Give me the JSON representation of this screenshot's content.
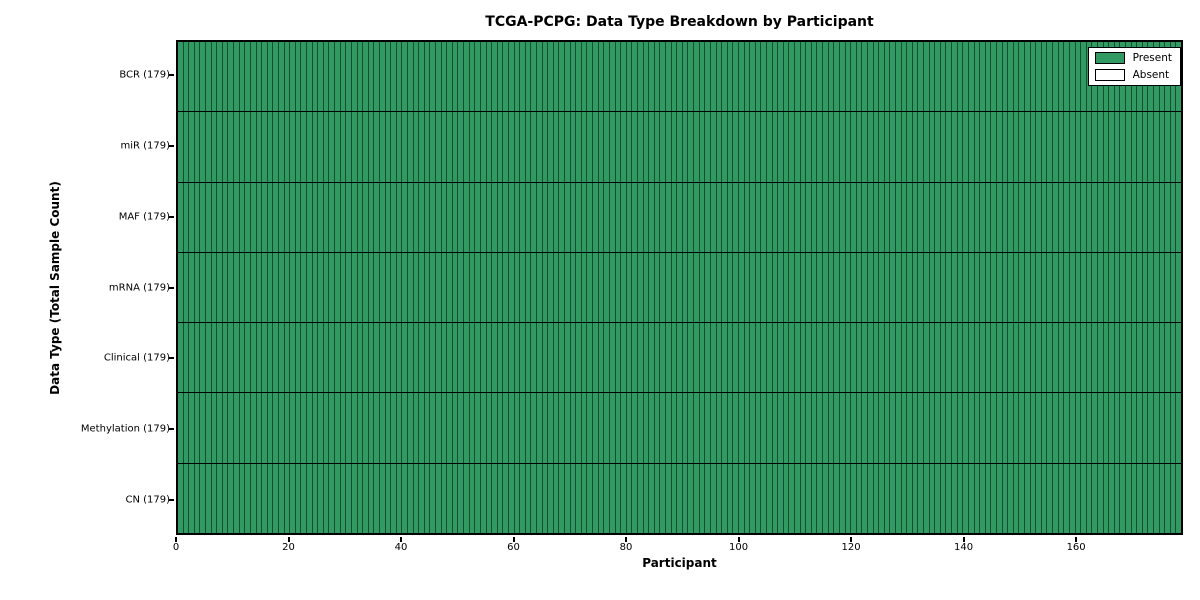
{
  "chart_data": {
    "type": "heatmap",
    "title": "TCGA-PCPG: Data Type Breakdown by Participant",
    "xlabel": "Participant",
    "ylabel": "Data Type (Total Sample Count)",
    "participants": 179,
    "x_max": 179,
    "x_ticks": [
      0,
      20,
      40,
      60,
      80,
      100,
      120,
      140,
      160
    ],
    "rows": [
      {
        "name": "BCR",
        "label": "BCR (179)",
        "total": 179,
        "present": 179,
        "absent": 0
      },
      {
        "name": "miR",
        "label": "miR (179)",
        "total": 179,
        "present": 179,
        "absent": 0
      },
      {
        "name": "MAF",
        "label": "MAF (179)",
        "total": 179,
        "present": 179,
        "absent": 0
      },
      {
        "name": "mRNA",
        "label": "mRNA (179)",
        "total": 179,
        "present": 179,
        "absent": 0
      },
      {
        "name": "Clinical",
        "label": "Clinical (179)",
        "total": 179,
        "present": 179,
        "absent": 0
      },
      {
        "name": "Methylation",
        "label": "Methylation (179)",
        "total": 179,
        "present": 179,
        "absent": 0
      },
      {
        "name": "CN",
        "label": "CN (179)",
        "total": 179,
        "present": 179,
        "absent": 0
      }
    ],
    "legend": [
      {
        "label": "Present",
        "color": "#319a63"
      },
      {
        "label": "Absent",
        "color": "#ffffff"
      }
    ],
    "colors": {
      "present": "#319a63",
      "absent": "#ffffff",
      "frame": "#000000"
    },
    "legend_position": "upper right",
    "grid": false
  }
}
